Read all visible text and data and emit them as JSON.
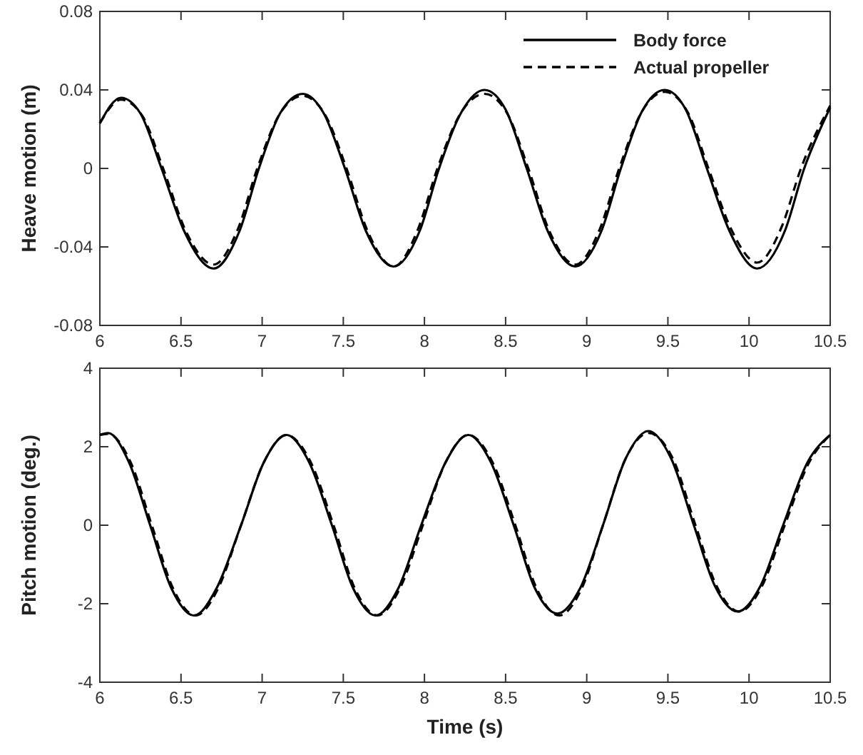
{
  "chart_data": [
    {
      "type": "line",
      "ylabel": "Heave motion (m)",
      "xlim": [
        6,
        10.5
      ],
      "xticks": [
        6,
        6.5,
        7,
        7.5,
        8,
        8.5,
        9,
        9.5,
        10,
        10.5
      ],
      "ylim": [
        -0.08,
        0.08
      ],
      "yticks": [
        -0.08,
        -0.04,
        0,
        0.04,
        0.08
      ],
      "legend": "top right",
      "grid": false,
      "marker": "none",
      "series": [
        {
          "name": "Body force",
          "color": "#000000",
          "line_style": "solid",
          "x": [
            6.0,
            6.13,
            6.25,
            6.38,
            6.52,
            6.7,
            6.86,
            6.98,
            7.11,
            7.25,
            7.38,
            7.51,
            7.64,
            7.81,
            7.97,
            8.09,
            8.23,
            8.37,
            8.5,
            8.63,
            8.76,
            8.93,
            9.09,
            9.21,
            9.34,
            9.48,
            9.61,
            9.74,
            9.88,
            10.05,
            10.22,
            10.34,
            10.5
          ],
          "values": [
            0.023,
            0.036,
            0.028,
            0.0,
            -0.032,
            -0.051,
            -0.032,
            0.0,
            0.028,
            0.038,
            0.028,
            0.0,
            -0.032,
            -0.05,
            -0.032,
            0.0,
            0.029,
            0.04,
            0.03,
            0.0,
            -0.032,
            -0.05,
            -0.032,
            0.0,
            0.029,
            0.04,
            0.03,
            0.0,
            -0.032,
            -0.051,
            -0.032,
            0.0,
            0.031
          ]
        },
        {
          "name": "Actual propeller",
          "color": "#000000",
          "line_style": "dashed",
          "x": [
            6.0,
            6.13,
            6.26,
            6.39,
            6.53,
            6.7,
            6.85,
            6.97,
            7.11,
            7.25,
            7.39,
            7.52,
            7.65,
            7.81,
            7.96,
            8.08,
            8.23,
            8.37,
            8.51,
            8.64,
            8.77,
            8.93,
            9.08,
            9.2,
            9.34,
            9.48,
            9.62,
            9.75,
            9.89,
            10.05,
            10.2,
            10.32,
            10.5
          ],
          "values": [
            0.023,
            0.035,
            0.027,
            0.0,
            -0.032,
            -0.049,
            -0.031,
            0.0,
            0.028,
            0.037,
            0.027,
            0.0,
            -0.032,
            -0.05,
            -0.031,
            0.0,
            0.029,
            0.038,
            0.028,
            0.0,
            -0.032,
            -0.049,
            -0.031,
            0.0,
            0.029,
            0.039,
            0.029,
            0.0,
            -0.031,
            -0.048,
            -0.03,
            0.0,
            0.032
          ]
        }
      ]
    },
    {
      "type": "line",
      "xlabel": "Time (s)",
      "ylabel": "Pitch motion (deg.)",
      "xlim": [
        6,
        10.5
      ],
      "xticks": [
        6,
        6.5,
        7,
        7.5,
        8,
        8.5,
        9,
        9.5,
        10,
        10.5
      ],
      "ylim": [
        -4,
        4
      ],
      "yticks": [
        -4,
        -2,
        0,
        2,
        4
      ],
      "legend": false,
      "grid": false,
      "marker": "none",
      "series": [
        {
          "color": "#000000",
          "line_style": "solid",
          "x": [
            6.0,
            6.05,
            6.18,
            6.31,
            6.44,
            6.58,
            6.72,
            6.87,
            7.01,
            7.15,
            7.29,
            7.43,
            7.56,
            7.7,
            7.84,
            7.98,
            8.13,
            8.27,
            8.41,
            8.55,
            8.68,
            8.82,
            8.96,
            9.1,
            9.24,
            9.38,
            9.52,
            9.66,
            9.79,
            9.93,
            10.07,
            10.21,
            10.36,
            10.5
          ],
          "values": [
            2.3,
            2.35,
            1.6,
            0.0,
            -1.6,
            -2.3,
            -1.6,
            0.0,
            1.6,
            2.3,
            1.6,
            0.0,
            -1.6,
            -2.3,
            -1.6,
            0.0,
            1.6,
            2.3,
            1.6,
            0.0,
            -1.6,
            -2.25,
            -1.6,
            0.0,
            1.7,
            2.4,
            1.7,
            0.0,
            -1.55,
            -2.2,
            -1.55,
            0.0,
            1.6,
            2.3
          ]
        },
        {
          "color": "#000000",
          "line_style": "dashed",
          "x": [
            6.0,
            6.05,
            6.19,
            6.32,
            6.45,
            6.59,
            6.73,
            6.87,
            7.01,
            7.15,
            7.3,
            7.44,
            7.57,
            7.71,
            7.85,
            7.99,
            8.13,
            8.27,
            8.42,
            8.56,
            8.69,
            8.83,
            8.97,
            9.1,
            9.24,
            9.38,
            9.53,
            9.67,
            9.8,
            9.94,
            10.08,
            10.22,
            10.37,
            10.5
          ],
          "values": [
            2.3,
            2.33,
            1.6,
            0.0,
            -1.6,
            -2.3,
            -1.6,
            0.0,
            1.6,
            2.3,
            1.6,
            0.0,
            -1.6,
            -2.3,
            -1.6,
            0.0,
            1.6,
            2.3,
            1.6,
            0.0,
            -1.6,
            -2.3,
            -1.6,
            0.0,
            1.7,
            2.35,
            1.7,
            0.0,
            -1.55,
            -2.2,
            -1.55,
            0.0,
            1.6,
            2.3
          ]
        }
      ]
    }
  ]
}
